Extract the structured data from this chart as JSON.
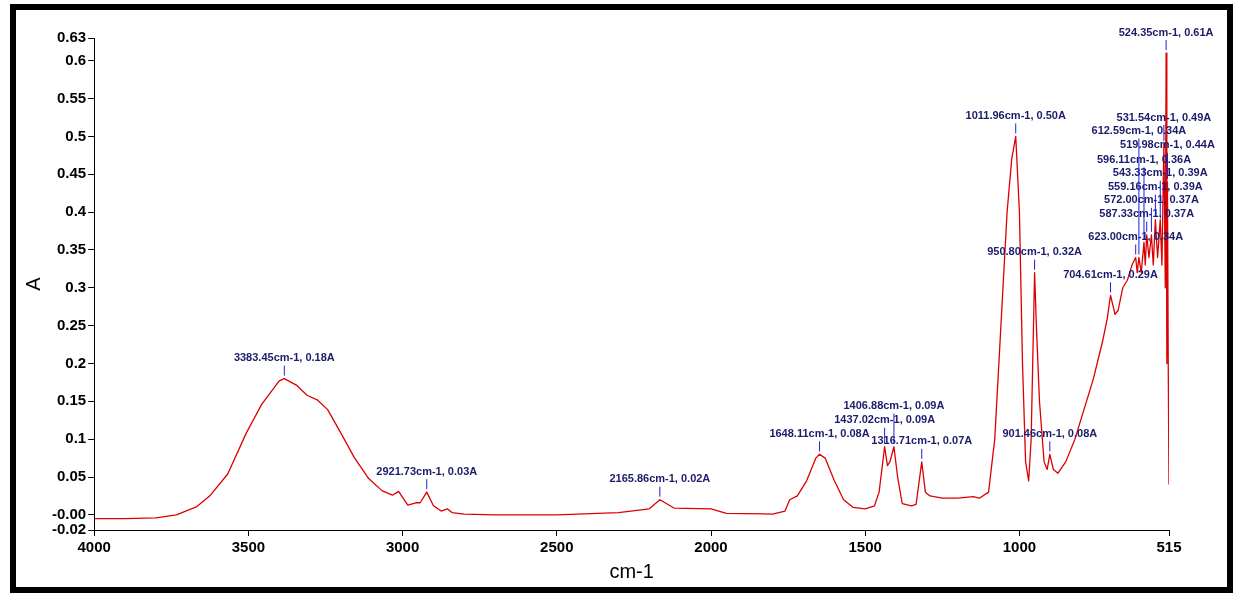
{
  "chart_data": {
    "type": "line",
    "xlabel": "cm-1",
    "ylabel": "A",
    "xlim": [
      4000,
      515
    ],
    "xticks": [
      4000,
      3500,
      3000,
      2500,
      2000,
      1500,
      1000,
      515
    ],
    "ylim": [
      -0.02,
      0.63
    ],
    "yticks": [
      -0.02,
      {
        "value": 0,
        "label": "-0.00"
      },
      0.05,
      0.1,
      0.15,
      0.2,
      0.25,
      0.3,
      0.35,
      0.4,
      0.45,
      0.5,
      0.55,
      0.6,
      0.63
    ],
    "grid": false,
    "legend": false,
    "marker": "none",
    "line_style": "solid",
    "series": [
      {
        "color": "#dd0000",
        "x": [
          4000,
          3900,
          3800,
          3733,
          3667,
          3623,
          3567,
          3507,
          3457,
          3400,
          3383.45,
          3343,
          3310,
          3277,
          3243,
          3200,
          3157,
          3110,
          3067,
          3033,
          3013,
          2983,
          2957,
          2943,
          2921.73,
          2900,
          2875,
          2855,
          2840,
          2800,
          2700,
          2500,
          2300,
          2200,
          2165.86,
          2120,
          2000,
          1950,
          1800,
          1760,
          1745,
          1720,
          1690,
          1660,
          1648.11,
          1630,
          1600,
          1570,
          1540,
          1500,
          1470,
          1455,
          1437.02,
          1428,
          1420,
          1406.88,
          1395,
          1380,
          1350,
          1335,
          1316.71,
          1305,
          1290,
          1250,
          1200,
          1150,
          1130,
          1100,
          1080,
          1060,
          1040,
          1025,
          1011.96,
          1000,
          990,
          980,
          970,
          962,
          950.8,
          945,
          935,
          920,
          910,
          901.46,
          890,
          875,
          850,
          820,
          790,
          760,
          730,
          715,
          704.61,
          690,
          680,
          665,
          650,
          635,
          623,
          618,
          612.59,
          605,
          596.11,
          592,
          587.33,
          580,
          572,
          566,
          559.16,
          552,
          543.33,
          538,
          531.54,
          527,
          524.35,
          522,
          519.98,
          517.5,
          515
        ],
        "values": [
          -0.005,
          -0.005,
          -0.004,
          0,
          0.011,
          0.026,
          0.054,
          0.108,
          0.146,
          0.177,
          0.18,
          0.171,
          0.158,
          0.152,
          0.139,
          0.108,
          0.076,
          0.048,
          0.032,
          0.026,
          0.031,
          0.013,
          0.016,
          0.016,
          0.03,
          0.012,
          0.005,
          0.008,
          0.003,
          0.001,
          0,
          0,
          0.003,
          0.008,
          0.02,
          0.009,
          0.008,
          0.002,
          0.001,
          0.005,
          0.02,
          0.025,
          0.045,
          0.075,
          0.08,
          0.075,
          0.045,
          0.02,
          0.01,
          0.008,
          0.012,
          0.03,
          0.09,
          0.065,
          0.07,
          0.09,
          0.05,
          0.015,
          0.012,
          0.014,
          0.07,
          0.03,
          0.025,
          0.022,
          0.022,
          0.024,
          0.022,
          0.03,
          0.1,
          0.25,
          0.4,
          0.47,
          0.5,
          0.4,
          0.2,
          0.07,
          0.045,
          0.1,
          0.32,
          0.25,
          0.15,
          0.07,
          0.06,
          0.08,
          0.06,
          0.055,
          0.07,
          0.1,
          0.14,
          0.18,
          0.23,
          0.26,
          0.29,
          0.265,
          0.27,
          0.3,
          0.31,
          0.33,
          0.34,
          0.32,
          0.34,
          0.32,
          0.36,
          0.33,
          0.37,
          0.34,
          0.37,
          0.33,
          0.39,
          0.34,
          0.39,
          0.33,
          0.49,
          0.3,
          0.61,
          0.2,
          0.44,
          0.2,
          0.04
        ]
      }
    ],
    "annotations": [
      {
        "text": "3383.45cm-1, 0.18A",
        "x": 3383.45,
        "y": 0.18
      },
      {
        "text": "2921.73cm-1, 0.03A",
        "x": 2921.73,
        "y": 0.03
      },
      {
        "text": "2165.86cm-1, 0.02A",
        "x": 2165.86,
        "y": 0.02
      },
      {
        "text": "1648.11cm-1, 0.08A",
        "x": 1648.11,
        "y": 0.08
      },
      {
        "text": "1316.71cm-1, 0.07A",
        "x": 1316.71,
        "y": 0.07
      },
      {
        "text": "1437.02cm-1, 0.09A",
        "x": 1437.02,
        "y": 0.09
      },
      {
        "text": "1406.88cm-1, 0.09A",
        "x": 1406.88,
        "y": 0.09
      },
      {
        "text": "1011.96cm-1, 0.50A",
        "x": 1011.96,
        "y": 0.5
      },
      {
        "text": "950.80cm-1, 0.32A",
        "x": 950.8,
        "y": 0.32
      },
      {
        "text": "901.46cm-1, 0.08A",
        "x": 901.46,
        "y": 0.08
      },
      {
        "text": "704.61cm-1, 0.29A",
        "x": 704.61,
        "y": 0.29
      },
      {
        "text": "623.00cm-1, 0.34A",
        "x": 623,
        "y": 0.34
      },
      {
        "text": "587.33cm-1, 0.37A",
        "x": 587.33,
        "y": 0.37
      },
      {
        "text": "572.00cm-1, 0.37A",
        "x": 572,
        "y": 0.37
      },
      {
        "text": "559.16cm-1, 0.39A",
        "x": 559.16,
        "y": 0.39
      },
      {
        "text": "543.33cm-1, 0.39A",
        "x": 543.33,
        "y": 0.39
      },
      {
        "text": "596.11cm-1, 0.36A",
        "x": 596.11,
        "y": 0.36
      },
      {
        "text": "519.98cm-1, 0.44A",
        "x": 519.98,
        "y": 0.44
      },
      {
        "text": "612.59cm-1, 0.34A",
        "x": 612.59,
        "y": 0.34
      },
      {
        "text": "531.54cm-1, 0.49A",
        "x": 531.54,
        "y": 0.49
      },
      {
        "text": "524.35cm-1, 0.61A",
        "x": 524.35,
        "y": 0.61
      }
    ]
  }
}
